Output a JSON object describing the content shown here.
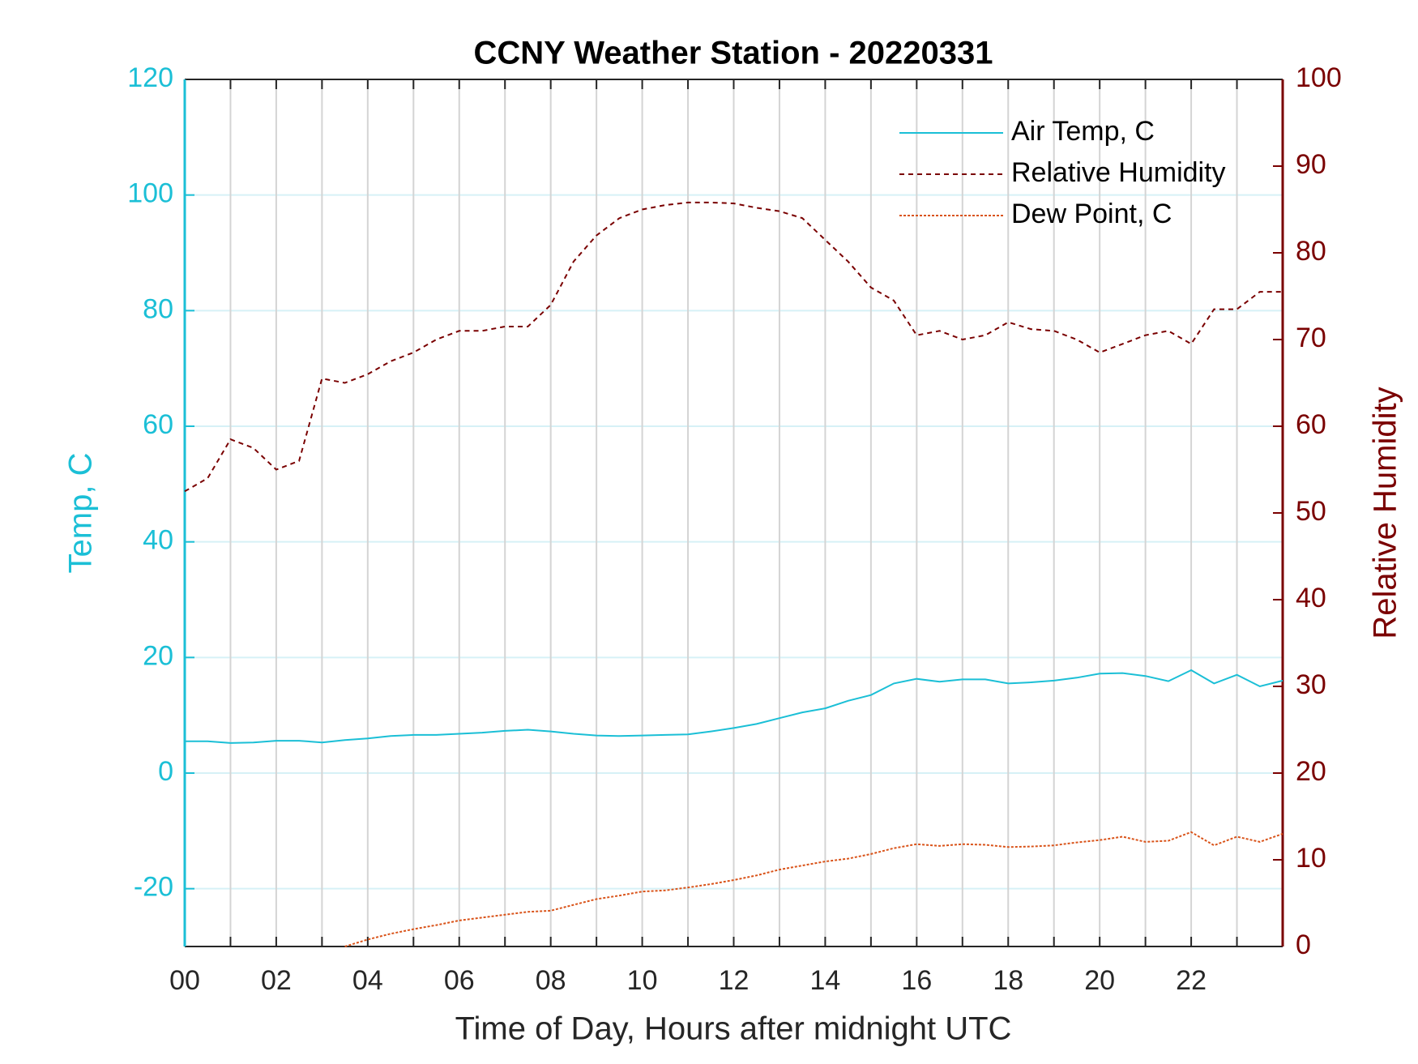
{
  "chart_data": {
    "type": "line",
    "title": "CCNY Weather Station - 20220331",
    "xlabel": "Time of Day, Hours after midnight UTC",
    "ylabel": "Temp, C",
    "y2label": "Relative Humidity",
    "xlim": [
      0,
      24
    ],
    "xticks": [
      {
        "value": 0,
        "label": "00"
      },
      {
        "value": 2,
        "label": "02"
      },
      {
        "value": 4,
        "label": "04"
      },
      {
        "value": 6,
        "label": "06"
      },
      {
        "value": 8,
        "label": "08"
      },
      10,
      12,
      14,
      16,
      18,
      20,
      22
    ],
    "xminorticks": [
      1,
      3,
      5,
      7,
      9,
      11,
      13,
      15,
      17,
      19,
      21,
      23
    ],
    "ylim": [
      -30,
      120
    ],
    "yticks": [
      -20,
      0,
      20,
      40,
      60,
      80,
      100,
      120
    ],
    "y2lim": [
      0,
      100
    ],
    "y2ticks": [
      0,
      10,
      20,
      30,
      40,
      50,
      60,
      70,
      80,
      90,
      100
    ],
    "grid": true,
    "legend": "northeast",
    "ycolor": "#1bbfd6",
    "y2color": "#7a0000",
    "x": [
      0,
      0.5,
      1,
      1.5,
      2,
      2.5,
      3,
      3.5,
      4,
      4.5,
      5,
      5.5,
      6,
      6.5,
      7,
      7.5,
      8,
      8.5,
      9,
      9.5,
      10,
      10.5,
      11,
      11.5,
      12,
      12.5,
      13,
      13.5,
      14,
      14.5,
      15,
      15.5,
      16,
      16.5,
      17,
      17.5,
      18,
      18.5,
      19,
      19.5,
      20,
      20.5,
      21,
      21.5,
      22,
      22.5,
      23,
      23.5,
      24
    ],
    "series": [
      {
        "name": "Air Temp, C",
        "color": "#1bbfd6",
        "dash": "none",
        "axis": "y",
        "values": [
          5.5,
          5.5,
          5.2,
          5.3,
          5.6,
          5.6,
          5.3,
          5.7,
          6.0,
          6.4,
          6.6,
          6.6,
          6.8,
          7.0,
          7.3,
          7.5,
          7.2,
          6.8,
          6.5,
          6.4,
          6.5,
          6.6,
          6.7,
          7.2,
          7.8,
          8.5,
          9.5,
          10.5,
          11.2,
          12.5,
          13.5,
          15.5,
          16.3,
          15.8,
          16.2,
          16.2,
          15.5,
          15.7,
          16,
          16.5,
          17.2,
          17.3,
          16.8,
          15.9,
          17.8,
          15.5,
          17.0,
          15.0,
          16.0
        ]
      },
      {
        "name": "Relative Humidity",
        "color": "#7a0000",
        "dash": "6 5",
        "axis": "y2",
        "values": [
          52.5,
          54,
          58.5,
          57.5,
          55,
          56,
          65.5,
          65,
          66,
          67.5,
          68.5,
          70,
          71,
          71,
          71.5,
          71.5,
          74,
          79,
          82,
          84,
          85,
          85.5,
          85.8,
          85.8,
          85.7,
          85.2,
          84.8,
          84,
          81.5,
          79,
          76,
          74.5,
          70.5,
          71,
          70,
          70.5,
          72,
          71.2,
          71,
          70,
          68.5,
          69.5,
          70.5,
          71,
          69.5,
          73.5,
          73.5,
          75.5,
          75.5
        ]
      },
      {
        "name": "Dew Point, C",
        "color": "#d95319",
        "dash": "3 2",
        "axis": "y",
        "values": [
          null,
          null,
          null,
          null,
          null,
          null,
          null,
          -30,
          -28.8,
          -27.8,
          -27,
          -26.3,
          -25.5,
          -25,
          -24.5,
          -24,
          -23.8,
          -22.8,
          -21.8,
          -21.2,
          -20.5,
          -20.3,
          -19.8,
          -19.2,
          -18.5,
          -17.7,
          -16.7,
          -16,
          -15.3,
          -14.8,
          -14,
          -13,
          -12.3,
          -12.6,
          -12.3,
          -12.4,
          -12.8,
          -12.7,
          -12.5,
          -12.0,
          -11.6,
          -11,
          -11.9,
          -11.7,
          -10.2,
          -12.5,
          -11,
          -11.9,
          -10.5
        ]
      }
    ]
  }
}
